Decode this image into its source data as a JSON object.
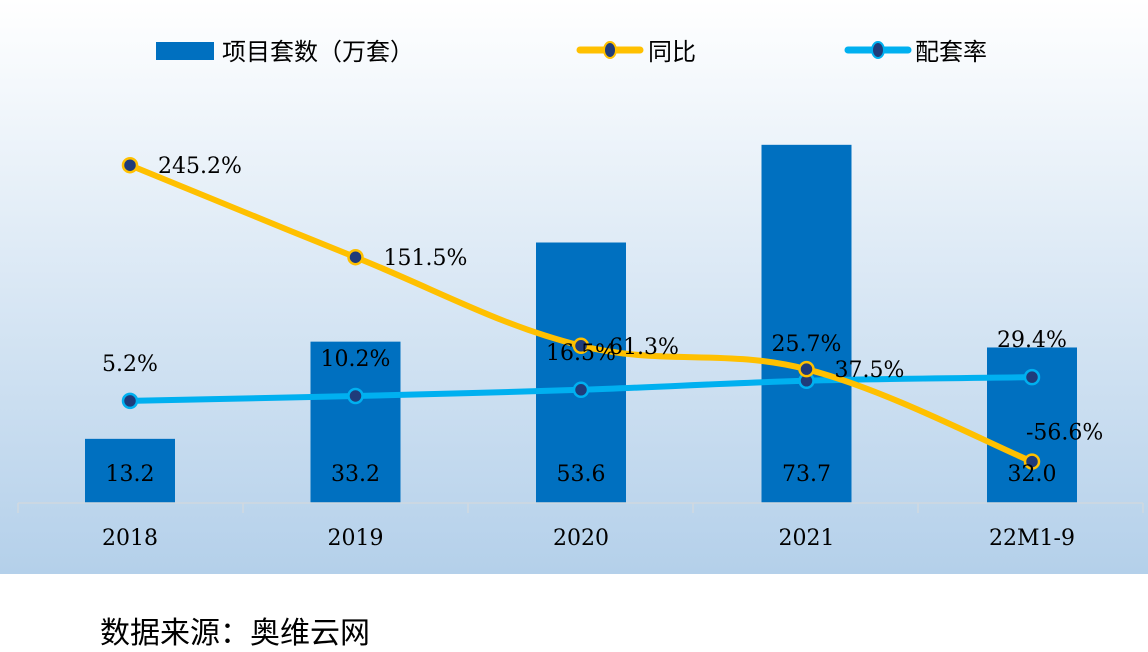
{
  "chart_data": {
    "type": "bar+line",
    "categories": [
      "2018",
      "2019",
      "2020",
      "2021",
      "22M1-9"
    ],
    "series": [
      {
        "name": "项目套数（万套）",
        "type": "bar",
        "axis": "primary",
        "color": "#0070c0",
        "values": [
          13.2,
          33.2,
          53.6,
          73.7,
          32.0
        ],
        "labels": [
          "13.2",
          "33.2",
          "53.6",
          "73.7",
          "32.0"
        ]
      },
      {
        "name": "同比",
        "type": "line",
        "axis": "secondary",
        "color": "#ffc000",
        "marker_color": "#1f3b7a",
        "values": [
          245.2,
          151.5,
          61.3,
          37.5,
          -56.6
        ],
        "labels": [
          "245.2%",
          "151.5%",
          "61.3%",
          "37.5%",
          "-56.6%"
        ]
      },
      {
        "name": "配套率",
        "type": "line",
        "axis": "secondary",
        "color": "#00b0f0",
        "marker_color": "#1f3b7a",
        "values": [
          5.2,
          10.2,
          16.5,
          25.7,
          29.4
        ],
        "labels": [
          "5.2%",
          "10.2%",
          "16.5%",
          "25.7%",
          "29.4%"
        ]
      }
    ],
    "legend_placement": "top",
    "grid": false,
    "background": [
      "#ffffff",
      "#b4d0ea"
    ]
  },
  "source": "数据来源：奥维云网"
}
